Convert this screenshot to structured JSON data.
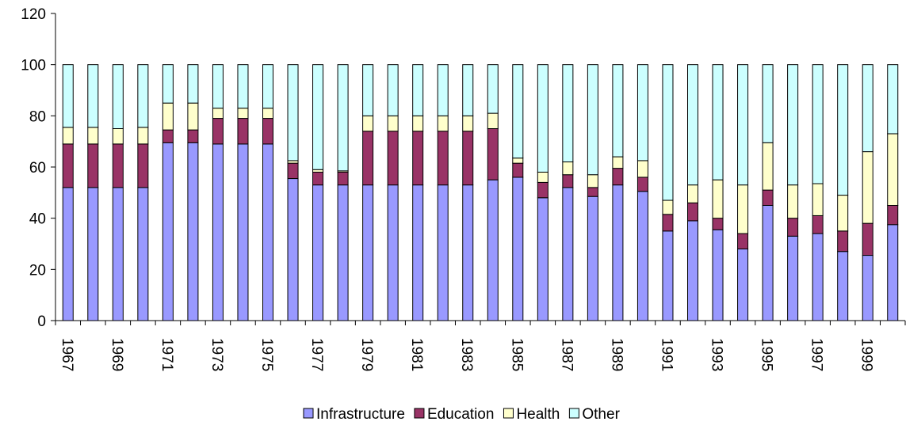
{
  "chart_data": {
    "type": "stacked_bar",
    "categories": [
      "1967",
      null,
      "1969",
      null,
      "1971",
      null,
      "1973",
      null,
      "1975",
      null,
      "1977",
      null,
      "1979",
      null,
      "1981",
      null,
      "1983",
      null,
      "1985",
      null,
      "1987",
      null,
      "1989",
      null,
      "1991",
      null,
      "1993",
      null,
      "1995",
      null,
      "1997",
      null,
      "1999",
      null
    ],
    "series": [
      {
        "name": "Infrastructure",
        "color": "#9999ff",
        "values": [
          52,
          52,
          52,
          52,
          69.5,
          69.5,
          69,
          69,
          69,
          55.5,
          53,
          53,
          53,
          53,
          53,
          53,
          53,
          55,
          56,
          48,
          52,
          48.5,
          53,
          50.5,
          35,
          39,
          35.5,
          28,
          45,
          33,
          34,
          27,
          25.5,
          37.5
        ]
      },
      {
        "name": "Education",
        "color": "#993366",
        "values": [
          17,
          17,
          17,
          17,
          5,
          5,
          10,
          10,
          10,
          6,
          5,
          5,
          21,
          21,
          21,
          21,
          21,
          20,
          5.5,
          6,
          5,
          3.5,
          6.5,
          5.5,
          6.5,
          7,
          4.5,
          6,
          6,
          7,
          7,
          8,
          12.5,
          7.5
        ]
      },
      {
        "name": "Health",
        "color": "#ffffcc",
        "values": [
          6.5,
          6.5,
          6,
          6.5,
          10.5,
          10.5,
          4,
          4,
          4,
          1,
          1,
          0.5,
          6,
          6,
          6,
          6,
          6,
          6,
          2,
          4,
          5,
          5,
          4.5,
          6.5,
          5.5,
          7,
          15,
          19,
          18.5,
          13,
          12.5,
          14,
          28,
          28
        ]
      },
      {
        "name": "Other",
        "color": "#ccffff",
        "values": [
          24.5,
          24.5,
          25,
          24.5,
          15,
          15,
          17,
          17,
          17,
          37.5,
          41,
          41.5,
          20,
          20,
          20,
          20,
          20,
          19,
          36.5,
          42,
          38,
          43,
          36,
          37.5,
          53,
          47,
          45,
          47,
          30.5,
          47,
          46.5,
          51,
          34,
          27
        ]
      }
    ],
    "ylim": [
      0,
      120
    ],
    "yticks": [
      0,
      20,
      40,
      60,
      80,
      100,
      120
    ],
    "legend": "bottom"
  }
}
